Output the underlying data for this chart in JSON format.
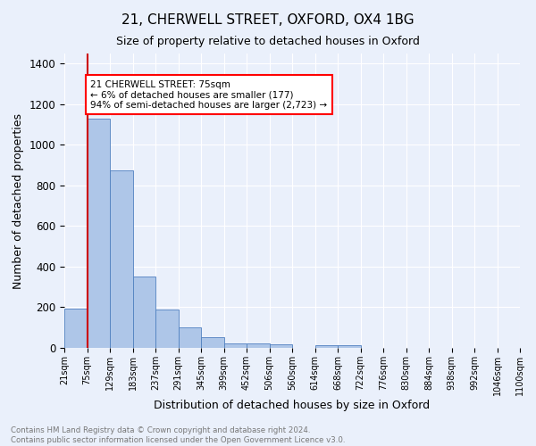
{
  "title1": "21, CHERWELL STREET, OXFORD, OX4 1BG",
  "title2": "Size of property relative to detached houses in Oxford",
  "xlabel": "Distribution of detached houses by size in Oxford",
  "ylabel": "Number of detached properties",
  "bin_labels": [
    "21sqm",
    "75sqm",
    "129sqm",
    "183sqm",
    "237sqm",
    "291sqm",
    "345sqm",
    "399sqm",
    "452sqm",
    "506sqm",
    "560sqm",
    "614sqm",
    "668sqm",
    "722sqm",
    "776sqm",
    "830sqm",
    "884sqm",
    "938sqm",
    "992sqm",
    "1046sqm",
    "1100sqm"
  ],
  "bar_values": [
    195,
    1130,
    875,
    350,
    190,
    100,
    52,
    22,
    22,
    18,
    0,
    15,
    15,
    0,
    0,
    0,
    0,
    0,
    0,
    0
  ],
  "bar_color": "#aec6e8",
  "bar_edge_color": "#5080c0",
  "red_line_x": 1,
  "annotation_text": "21 CHERWELL STREET: 75sqm\n← 6% of detached houses are smaller (177)\n94% of semi-detached houses are larger (2,723) →",
  "annotation_box_color": "white",
  "annotation_box_edge_color": "red",
  "red_line_color": "#cc0000",
  "ylim": [
    0,
    1450
  ],
  "yticks": [
    0,
    200,
    400,
    600,
    800,
    1000,
    1200,
    1400
  ],
  "footer_text": "Contains HM Land Registry data © Crown copyright and database right 2024.\nContains public sector information licensed under the Open Government Licence v3.0.",
  "bg_color": "#eaf0fb",
  "grid_color": "#ffffff",
  "title1_fontsize": 11,
  "title2_fontsize": 9,
  "xlabel_fontsize": 9,
  "ylabel_fontsize": 9,
  "xtick_fontsize": 7,
  "ytick_fontsize": 8.5
}
